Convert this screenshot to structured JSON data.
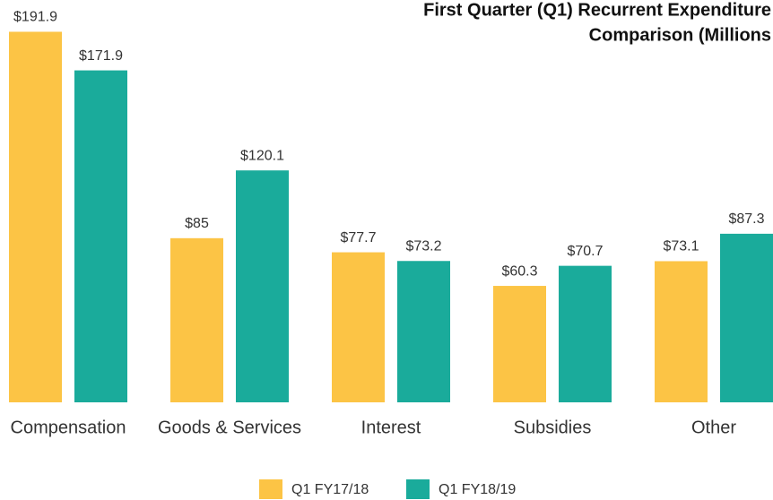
{
  "chart_data": {
    "type": "bar",
    "title": [
      "First Quarter (Q1) Recurrent Expenditure",
      "Comparison (Millions"
    ],
    "categories": [
      "Compensation",
      "Goods & Services",
      "Interest",
      "Subsidies",
      "Other"
    ],
    "series": [
      {
        "name": "Q1 FY17/18",
        "color": "#fcc445",
        "values": [
          191.9,
          85,
          77.7,
          60.3,
          73.1
        ],
        "value_labels": [
          "$191.9",
          "$85",
          "$77.7",
          "$60.3",
          "$73.1"
        ]
      },
      {
        "name": "Q1 FY18/19",
        "color": "#1aab9b",
        "values": [
          171.9,
          120.1,
          73.2,
          70.7,
          87.3
        ],
        "value_labels": [
          "$171.9",
          "$120.1",
          "$73.2",
          "$70.7",
          "$87.3"
        ]
      }
    ],
    "ylim": [
      0,
      200
    ]
  }
}
